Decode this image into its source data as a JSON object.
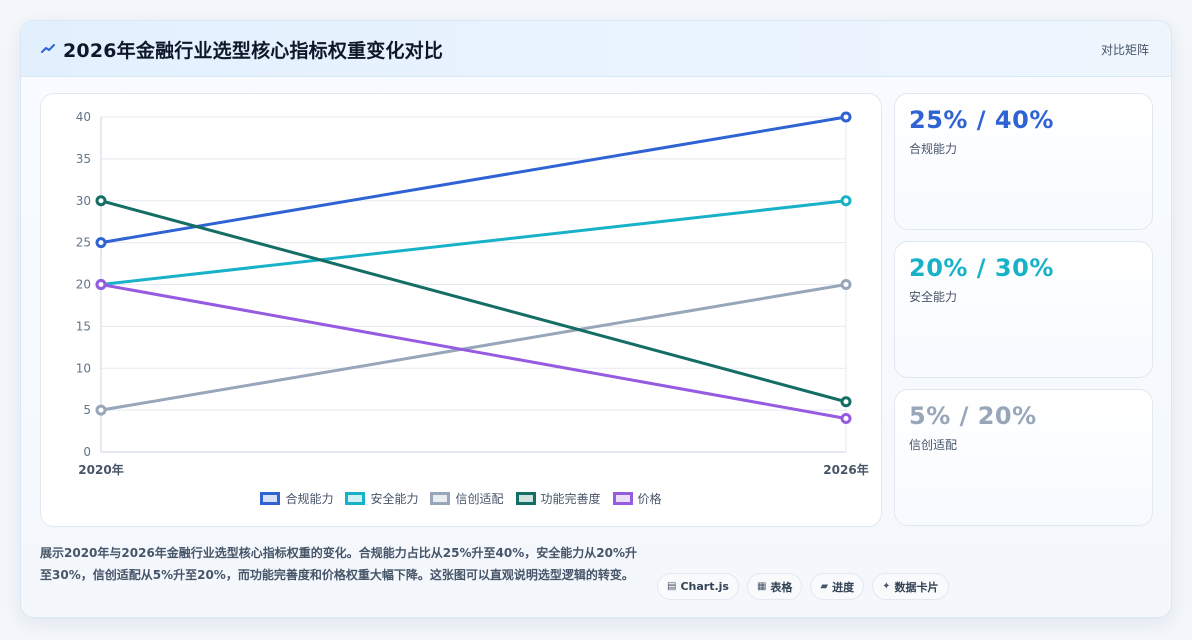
{
  "header": {
    "title": "2026年金融行业选型核心指标权重变化对比",
    "action_label": "对比矩阵"
  },
  "chart_data": {
    "type": "line",
    "categories": [
      "2020年",
      "2026年"
    ],
    "ylim": [
      0,
      40
    ],
    "yticks": [
      0,
      5,
      10,
      15,
      20,
      25,
      30,
      35,
      40
    ],
    "grid": true,
    "legend_position": "bottom",
    "series": [
      {
        "name": "合规能力",
        "values": [
          25,
          40
        ],
        "color": "#2f63d4"
      },
      {
        "name": "安全能力",
        "values": [
          20,
          30
        ],
        "color": "#17b2c8"
      },
      {
        "name": "信创适配",
        "values": [
          5,
          20
        ],
        "color": "#97a6b9"
      },
      {
        "name": "功能完善度",
        "values": [
          30,
          6
        ],
        "color": "#146e65"
      },
      {
        "name": "价格",
        "values": [
          20,
          4
        ],
        "color": "#955be0"
      }
    ]
  },
  "stats": [
    {
      "value": "25% / 40%",
      "label": "合规能力",
      "color": "#2f63d4"
    },
    {
      "value": "20% / 30%",
      "label": "安全能力",
      "color": "#17b2c8"
    },
    {
      "value": "5% / 20%",
      "label": "信创适配",
      "color": "#97a6b9"
    }
  ],
  "description": "展示2020年与2026年金融行业选型核心指标权重的变化。合规能力占比从25%升至40%，安全能力从20%升至30%，信创适配从5%升至20%，而功能完善度和价格权重大幅下降。这张图可以直观说明选型逻辑的转变。",
  "tags": [
    {
      "icon": "▤",
      "icon_name": "chart-icon",
      "label": "Chart.js"
    },
    {
      "icon": "▦",
      "icon_name": "table-icon",
      "label": "表格"
    },
    {
      "icon": "▰",
      "icon_name": "progress-icon",
      "label": "进度"
    },
    {
      "icon": "✦",
      "icon_name": "sparkle-icon",
      "label": "数据卡片"
    }
  ],
  "colors": {
    "accent": "#2f63d4",
    "header_bg": "#e2f0fd",
    "grid": "#e5e9ef"
  }
}
